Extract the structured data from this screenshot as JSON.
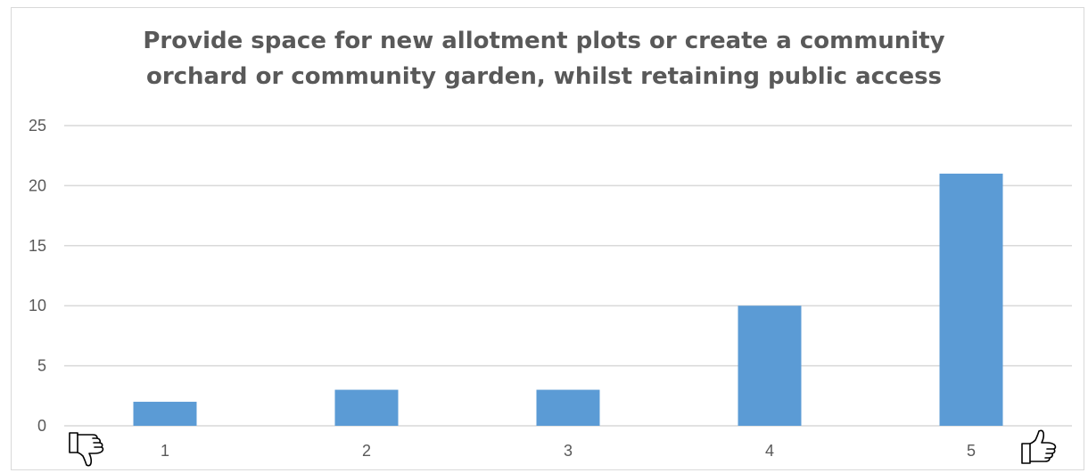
{
  "chart_data": {
    "type": "bar",
    "title_lines": [
      "Provide space for new allotment plots or create a community",
      "orchard or community garden, whilst retaining public access"
    ],
    "categories": [
      "1",
      "2",
      "3",
      "4",
      "5"
    ],
    "values": [
      2,
      3,
      3,
      10,
      21
    ],
    "ylim": [
      0,
      25
    ],
    "yticks": [
      0,
      5,
      10,
      15,
      20,
      25
    ],
    "grid": true,
    "legend": "none",
    "bar_color": "#5b9bd5",
    "gridline_color": "#d9d9d9",
    "axis_text_color": "#595959"
  },
  "icons": {
    "left": "thumbs-down-icon",
    "right": "thumbs-up-icon"
  }
}
